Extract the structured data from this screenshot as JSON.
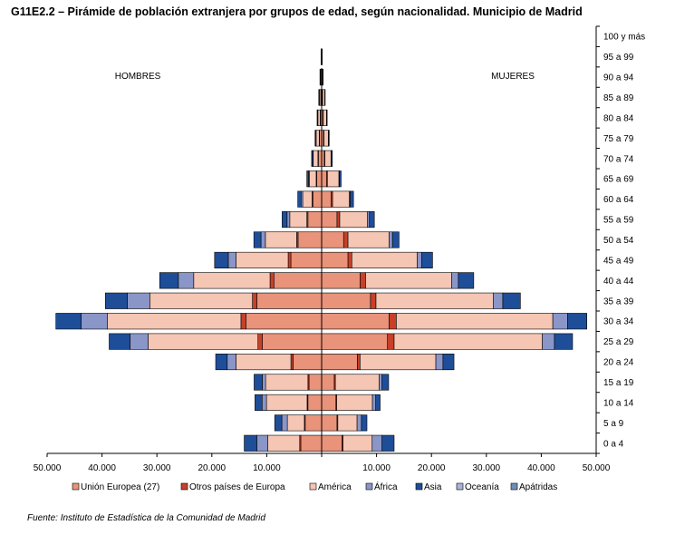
{
  "title": "G11E2.2 – Pirámide de población extranjera por grupos de edad, según nacionalidad. Municipio de Madrid",
  "source": "Fuente: Instituto de Estadística de la Comunidad de Madrid",
  "chart_data": {
    "type": "bar",
    "orientation": "horizontal-stacked-pyramid",
    "side_labels": {
      "left": "HOMBRES",
      "right": "MUJERES"
    },
    "categories": [
      "0 a 4",
      "5 a 9",
      "10 a 14",
      "15 a 19",
      "20 a 24",
      "25 a 29",
      "30 a 34",
      "35 a 39",
      "40 a 44",
      "45 a 49",
      "50 a 54",
      "55 a 59",
      "60 a 64",
      "65 a 69",
      "70 a 74",
      "75 a 79",
      "80 a 84",
      "85 a 89",
      "90 a 94",
      "95 a 99",
      "100 y más"
    ],
    "xlim": [
      -50000,
      50000
    ],
    "x_ticks": [
      -50000,
      -40000,
      -30000,
      -20000,
      -10000,
      10000,
      20000,
      30000,
      40000,
      50000
    ],
    "x_tick_labels": [
      "50.000",
      "40.000",
      "30.000",
      "20.000",
      "10.000",
      "10.000",
      "20.000",
      "30.000",
      "40.000",
      "50.000"
    ],
    "legend_position": "bottom",
    "series": [
      {
        "name": "Unión Europea (27)",
        "color": "#E8937A",
        "hombres": [
          3800,
          3000,
          2500,
          2300,
          5200,
          10800,
          13800,
          11800,
          8700,
          5600,
          4300,
          2500,
          1600,
          900,
          600,
          400,
          250,
          150,
          80,
          0,
          0
        ],
        "mujeres": [
          3700,
          2800,
          2600,
          2300,
          6500,
          12000,
          12300,
          8900,
          7000,
          4800,
          4000,
          2800,
          1700,
          900,
          500,
          350,
          250,
          150,
          80,
          0,
          0
        ]
      },
      {
        "name": "Otros países de Europa",
        "color": "#C8402A",
        "hombres": [
          200,
          150,
          150,
          200,
          400,
          800,
          900,
          800,
          700,
          500,
          250,
          200,
          150,
          100,
          80,
          50,
          30,
          20,
          10,
          0,
          0
        ],
        "mujeres": [
          200,
          150,
          150,
          200,
          500,
          1200,
          1300,
          1000,
          1000,
          700,
          800,
          500,
          300,
          150,
          100,
          80,
          50,
          30,
          10,
          0,
          0
        ]
      },
      {
        "name": "América",
        "color": "#F5C6B4",
        "hombres": [
          5800,
          3100,
          7400,
          7700,
          10000,
          20000,
          24300,
          18700,
          13900,
          9500,
          5700,
          3100,
          1700,
          1200,
          850,
          550,
          400,
          250,
          150,
          80,
          0
        ],
        "mujeres": [
          5300,
          3500,
          6500,
          8000,
          13800,
          27000,
          28500,
          21400,
          15700,
          11900,
          7500,
          5000,
          3000,
          2100,
          1100,
          800,
          600,
          400,
          150,
          80,
          0
        ]
      },
      {
        "name": "África",
        "color": "#8A96C8",
        "hombres": [
          2000,
          1000,
          800,
          600,
          1600,
          3300,
          4800,
          4100,
          2800,
          1400,
          800,
          500,
          300,
          200,
          100,
          50,
          50,
          30,
          20,
          0,
          0
        ],
        "mujeres": [
          1800,
          800,
          600,
          500,
          1300,
          2200,
          2700,
          1700,
          1200,
          800,
          600,
          400,
          200,
          100,
          50,
          50,
          30,
          20,
          10,
          0,
          0
        ]
      },
      {
        "name": "Asia",
        "color": "#1F4E99",
        "hombres": [
          2300,
          1300,
          1300,
          1500,
          2100,
          3800,
          4600,
          4000,
          3400,
          2500,
          1300,
          900,
          600,
          300,
          200,
          150,
          100,
          80,
          50,
          20,
          0
        ],
        "mujeres": [
          2200,
          1000,
          800,
          1200,
          2000,
          3300,
          3500,
          3200,
          2800,
          2000,
          1200,
          900,
          600,
          300,
          200,
          100,
          80,
          50,
          30,
          20,
          0
        ]
      },
      {
        "name": "Oceanía",
        "color": "#A9B3DA",
        "hombres": [
          0,
          0,
          0,
          0,
          0,
          0,
          0,
          0,
          0,
          0,
          0,
          0,
          0,
          0,
          0,
          0,
          0,
          0,
          0,
          0,
          0
        ],
        "mujeres": [
          0,
          0,
          0,
          0,
          0,
          0,
          0,
          0,
          0,
          0,
          0,
          0,
          0,
          0,
          0,
          0,
          0,
          0,
          0,
          0,
          0
        ]
      },
      {
        "name": "Apátridas",
        "color": "#6F8FB8",
        "hombres": [
          0,
          0,
          0,
          0,
          0,
          0,
          0,
          0,
          0,
          0,
          0,
          0,
          0,
          0,
          0,
          0,
          0,
          0,
          0,
          0,
          0
        ],
        "mujeres": [
          0,
          0,
          0,
          0,
          0,
          0,
          0,
          0,
          0,
          0,
          0,
          0,
          0,
          0,
          0,
          0,
          0,
          0,
          0,
          0,
          0
        ]
      }
    ]
  }
}
